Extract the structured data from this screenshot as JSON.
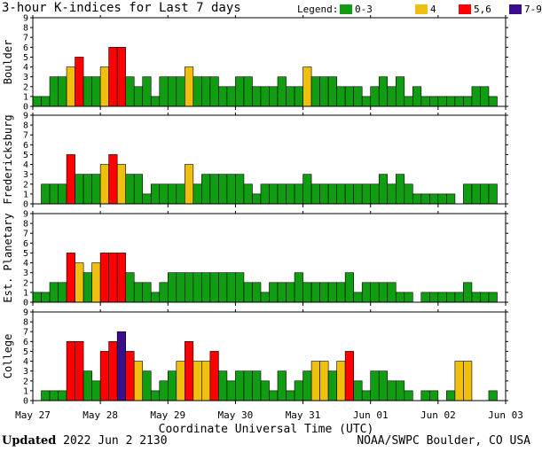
{
  "title": "3-hour K-indices for Last 7 days",
  "legend": {
    "label": "Legend:",
    "items": [
      {
        "label": "0-3",
        "color": "#119d11"
      },
      {
        "label": "4",
        "color": "#f0c010"
      },
      {
        "label": "5,6",
        "color": "#ff0000"
      },
      {
        "label": "7-9",
        "color": "#3a0e8c"
      }
    ]
  },
  "footer": {
    "updated_label": "Updated",
    "updated_value": "2022 Jun  2 2130",
    "credit": "NOAA/SWPC Boulder, CO USA"
  },
  "chart_data": {
    "type": "bar",
    "xlabel": "Coordinate Universal Time (UTC)",
    "x_ticks": [
      "May 27",
      "May 28",
      "May 29",
      "May 30",
      "May 31",
      "Jun 01",
      "Jun 02",
      "Jun 03"
    ],
    "ylim": [
      0,
      9
    ],
    "y_ticks": [
      0,
      1,
      2,
      3,
      4,
      5,
      6,
      7,
      8,
      9
    ],
    "intervals": 56,
    "series": [
      {
        "name": "Boulder",
        "values": [
          1,
          1,
          3,
          3,
          4,
          5,
          3,
          3,
          4,
          6,
          6,
          3,
          2,
          3,
          1,
          3,
          3,
          3,
          4,
          3,
          3,
          3,
          2,
          2,
          3,
          3,
          2,
          2,
          2,
          3,
          2,
          2,
          4,
          3,
          3,
          3,
          2,
          2,
          2,
          1,
          2,
          3,
          2,
          3,
          1,
          2,
          1,
          1,
          1,
          1,
          1,
          1,
          2,
          2,
          1,
          0
        ]
      },
      {
        "name": "Fredericksburg",
        "values": [
          0,
          2,
          2,
          2,
          5,
          3,
          3,
          3,
          4,
          5,
          4,
          3,
          3,
          1,
          2,
          2,
          2,
          2,
          4,
          2,
          3,
          3,
          3,
          3,
          3,
          2,
          1,
          2,
          2,
          2,
          2,
          2,
          3,
          2,
          2,
          2,
          2,
          2,
          2,
          2,
          2,
          3,
          2,
          3,
          2,
          1,
          1,
          1,
          1,
          1,
          0,
          2,
          2,
          2,
          2,
          0
        ]
      },
      {
        "name": "Est. Planetary",
        "values": [
          1,
          1,
          2,
          2,
          5,
          4,
          3,
          4,
          5,
          5,
          5,
          3,
          2,
          2,
          1,
          2,
          3,
          3,
          3,
          3,
          3,
          3,
          3,
          3,
          3,
          2,
          2,
          1,
          2,
          2,
          2,
          3,
          2,
          2,
          2,
          2,
          2,
          3,
          1,
          2,
          2,
          2,
          2,
          1,
          1,
          0,
          1,
          1,
          1,
          1,
          1,
          2,
          1,
          1,
          1,
          0
        ]
      },
      {
        "name": "College",
        "values": [
          0,
          1,
          1,
          1,
          6,
          6,
          3,
          2,
          5,
          6,
          7,
          5,
          4,
          3,
          1,
          2,
          3,
          4,
          6,
          4,
          4,
          5,
          3,
          2,
          3,
          3,
          3,
          2,
          1,
          3,
          1,
          2,
          3,
          4,
          4,
          3,
          4,
          5,
          2,
          1,
          3,
          3,
          2,
          2,
          1,
          0,
          1,
          1,
          0,
          1,
          4,
          4,
          0,
          0,
          1,
          0
        ]
      }
    ]
  }
}
